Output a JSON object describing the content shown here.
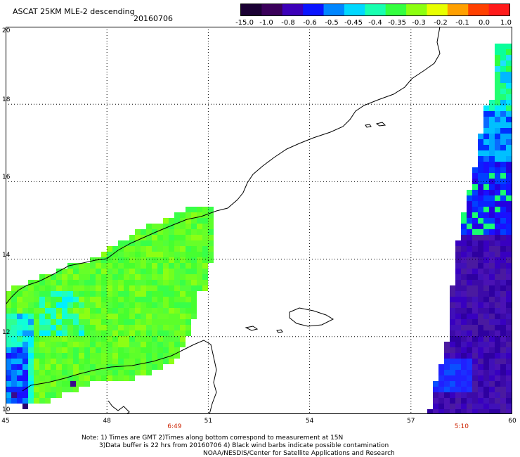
{
  "title": "ASCAT 25KM MLE-2 descending",
  "date": "20160706",
  "colorbar": {
    "labels": [
      "-15.0",
      "-1.0",
      "-0.8",
      "-0.6",
      "-0.5",
      "-0.45",
      "-0.4",
      "-0.35",
      "-0.3",
      "-0.2",
      "-0.1",
      "0.0",
      "1.0"
    ],
    "colors": [
      "#1a0033",
      "#3a005a",
      "#3c00b8",
      "#0a14ff",
      "#0086ff",
      "#00d8ff",
      "#18ffb0",
      "#34ff40",
      "#8cff10",
      "#e8ff00",
      "#ffa000",
      "#ff4000",
      "#ff1a1a"
    ]
  },
  "map": {
    "lon_range": [
      45,
      60
    ],
    "lat_range": [
      10,
      20
    ],
    "xticks": [
      45,
      48,
      51,
      54,
      57,
      60
    ],
    "yticks": [
      10,
      12,
      14,
      16,
      18,
      20
    ],
    "pass_times": [
      {
        "lon": 50,
        "label": "6:49"
      },
      {
        "lon": 58.5,
        "label": "5:10"
      }
    ]
  },
  "notes": [
    "Note: 1) Times are GMT 2)Times along bottom correspond to measurement at 15N",
    "3)Data buffer is 22 hrs from 20160706 4) Black wind barbs indicate possible contamination",
    "NOAA/NESDIS/Center for Satellite Applications and Research"
  ]
}
